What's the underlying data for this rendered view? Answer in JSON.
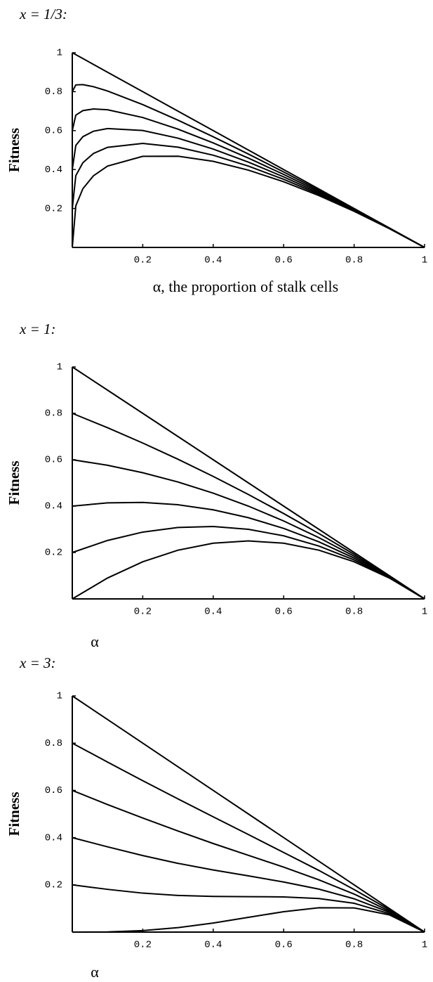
{
  "chart_data": [
    {
      "type": "line",
      "title": "x = 1/3:",
      "x_label": "α, the proportion of stalk cells",
      "y_label": "Fitness",
      "xlim": [
        0,
        1
      ],
      "ylim": [
        0,
        1
      ],
      "xticks": [
        0.2,
        0.4,
        0.6,
        0.8,
        1
      ],
      "yticks": [
        0.2,
        0.4,
        0.6,
        0.8,
        1
      ],
      "x": [
        0,
        0.01,
        0.03,
        0.06,
        0.1,
        0.2,
        0.3,
        0.4,
        0.5,
        0.6,
        0.7,
        0.8,
        0.9,
        1
      ],
      "series": [
        {
          "color": "#000000",
          "values": [
            1,
            0.99,
            0.97,
            0.94,
            0.9,
            0.8,
            0.7,
            0.6,
            0.5,
            0.4,
            0.3,
            0.2,
            0.1,
            0
          ]
        },
        {
          "color": "#000000",
          "values": [
            0.8,
            0.8347,
            0.8363,
            0.8256,
            0.8036,
            0.7336,
            0.6537,
            0.5684,
            0.4794,
            0.3875,
            0.2933,
            0.1971,
            0.0993,
            0
          ]
        },
        {
          "color": "#000000",
          "values": [
            0.6,
            0.6793,
            0.7026,
            0.7112,
            0.7071,
            0.6671,
            0.6075,
            0.5368,
            0.4587,
            0.3749,
            0.2866,
            0.1943,
            0.0986,
            0
          ]
        },
        {
          "color": "#000000",
          "values": [
            0.4,
            0.5239,
            0.5688,
            0.5968,
            0.6107,
            0.6007,
            0.5611,
            0.5053,
            0.4381,
            0.3624,
            0.2798,
            0.1914,
            0.0979,
            0
          ]
        },
        {
          "color": "#000000",
          "values": [
            0.2,
            0.3686,
            0.4351,
            0.4824,
            0.5142,
            0.5343,
            0.5149,
            0.4737,
            0.4175,
            0.3499,
            0.2731,
            0.1885,
            0.0972,
            0
          ]
        },
        {
          "color": "#000000",
          "values": [
            0,
            0.2133,
            0.3014,
            0.368,
            0.4178,
            0.4678,
            0.4686,
            0.4421,
            0.3969,
            0.3374,
            0.2664,
            0.1857,
            0.0966,
            0
          ]
        }
      ]
    },
    {
      "type": "line",
      "title": "x = 1:",
      "x_label": "α",
      "y_label": "Fitness",
      "xlim": [
        0,
        1
      ],
      "ylim": [
        0,
        1
      ],
      "xticks": [
        0.2,
        0.4,
        0.6,
        0.8,
        1
      ],
      "yticks": [
        0.2,
        0.4,
        0.6,
        0.8,
        1
      ],
      "x": [
        0,
        0.1,
        0.2,
        0.3,
        0.4,
        0.5,
        0.6,
        0.7,
        0.8,
        0.9,
        1
      ],
      "series": [
        {
          "color": "#000000",
          "values": [
            1,
            0.9,
            0.8,
            0.7,
            0.6,
            0.5,
            0.4,
            0.3,
            0.2,
            0.1,
            0
          ]
        },
        {
          "color": "#000000",
          "values": [
            0.8,
            0.738,
            0.672,
            0.602,
            0.528,
            0.45,
            0.368,
            0.282,
            0.192,
            0.098,
            0
          ]
        },
        {
          "color": "#000000",
          "values": [
            0.6,
            0.576,
            0.544,
            0.504,
            0.456,
            0.4,
            0.336,
            0.264,
            0.184,
            0.096,
            0
          ]
        },
        {
          "color": "#000000",
          "values": [
            0.4,
            0.414,
            0.416,
            0.406,
            0.384,
            0.35,
            0.304,
            0.246,
            0.176,
            0.094,
            0
          ]
        },
        {
          "color": "#000000",
          "values": [
            0.2,
            0.252,
            0.288,
            0.308,
            0.312,
            0.3,
            0.272,
            0.228,
            0.168,
            0.092,
            0
          ]
        },
        {
          "color": "#000000",
          "values": [
            0,
            0.09,
            0.16,
            0.21,
            0.24,
            0.25,
            0.24,
            0.21,
            0.16,
            0.09,
            0
          ]
        }
      ]
    },
    {
      "type": "line",
      "title": "x = 3:",
      "x_label": "α",
      "y_label": "Fitness",
      "xlim": [
        0,
        1
      ],
      "ylim": [
        0,
        1
      ],
      "xticks": [
        0.2,
        0.4,
        0.6,
        0.8,
        1
      ],
      "yticks": [
        0.2,
        0.4,
        0.6,
        0.8,
        1
      ],
      "x": [
        0,
        0.1,
        0.2,
        0.3,
        0.4,
        0.5,
        0.6,
        0.7,
        0.8,
        0.9,
        1
      ],
      "series": [
        {
          "color": "#000000",
          "values": [
            1,
            0.9,
            0.8,
            0.7,
            0.6,
            0.5,
            0.4,
            0.3,
            0.2,
            0.1,
            0
          ]
        },
        {
          "color": "#000000",
          "values": [
            0.8,
            0.72,
            0.641,
            0.564,
            0.488,
            0.413,
            0.337,
            0.261,
            0.18,
            0.095,
            0
          ]
        },
        {
          "color": "#000000",
          "values": [
            0.6,
            0.54,
            0.483,
            0.428,
            0.375,
            0.325,
            0.275,
            0.221,
            0.161,
            0.089,
            0
          ]
        },
        {
          "color": "#000000",
          "values": [
            0.4,
            0.361,
            0.324,
            0.291,
            0.263,
            0.238,
            0.212,
            0.182,
            0.141,
            0.084,
            0
          ]
        },
        {
          "color": "#000000",
          "values": [
            0.2,
            0.181,
            0.165,
            0.155,
            0.151,
            0.15,
            0.149,
            0.142,
            0.122,
            0.078,
            0
          ]
        },
        {
          "color": "#000000",
          "values": [
            0,
            0.0009,
            0.0064,
            0.0189,
            0.0384,
            0.0625,
            0.0864,
            0.1029,
            0.1024,
            0.0729,
            0
          ]
        }
      ]
    }
  ]
}
